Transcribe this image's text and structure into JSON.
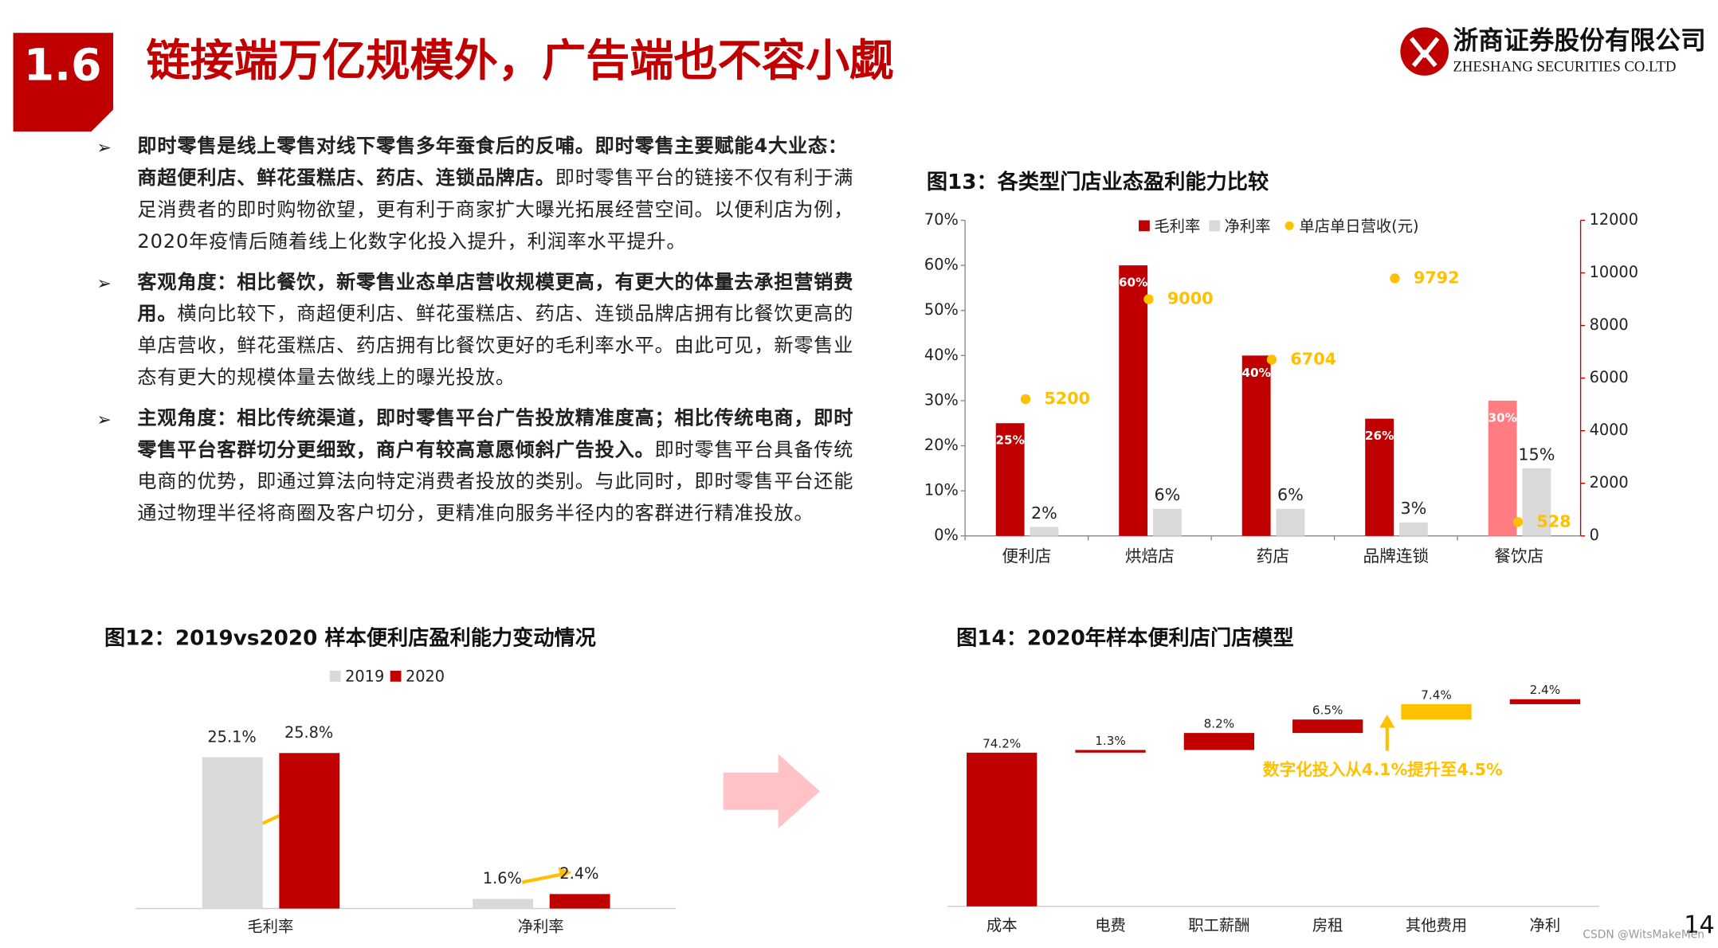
{
  "header": {
    "section": "1.6",
    "title": "链接端万亿规模外，广告端也不容小觑",
    "company": "浙商证券股份有限公司",
    "company_en": "ZHESHANG SECURITIES CO.LTD"
  },
  "bullets": [
    {
      "bold": "即时零售是线上零售对线下零售多年蚕食后的反哺。即时零售主要赋能4大业态：商超便利店、鲜花蛋糕店、药店、连锁品牌店。",
      "text": "即时零售平台的链接不仅有利于满足消费者的即时购物欲望，更有利于商家扩大曝光拓展经营空间。以便利店为例，2020年疫情后随着线上化数字化投入提升，利润率水平提升。"
    },
    {
      "bold": "客观角度：相比餐饮，新零售业态单店营收规模更高，有更大的体量去承担营销费用。",
      "text": "横向比较下，商超便利店、鲜花蛋糕店、药店、连锁品牌店拥有比餐饮更高的单店营收，鲜花蛋糕店、药店拥有比餐饮更好的毛利率水平。由此可见，新零售业态有更大的规模体量去做线上的曝光投放。"
    },
    {
      "bold": "主观角度：相比传统渠道，即时零售平台广告投放精准度高；相比传统电商，即时零售平台客群切分更细致，商户有较高意愿倾斜广告投入。",
      "text": "即时零售平台具备传统电商的优势，即通过算法向特定消费者投放的类别。与此同时，即时零售平台还能通过物理半径将商圈及客户切分，更精准向服务半径内的客群进行精准投放。"
    }
  ],
  "chart_data": [
    {
      "type": "bar",
      "title": "图13：各类型门店业态盈利能力比较",
      "categories": [
        "便利店",
        "烘焙店",
        "药店",
        "品牌连锁",
        "餐饮店"
      ],
      "series": [
        {
          "name": "毛利率",
          "color": "#c00000",
          "colors": [
            "#c00000",
            "#c00000",
            "#c00000",
            "#c00000",
            "#ff7c80"
          ],
          "values": [
            25,
            60,
            40,
            26,
            30
          ],
          "value_labels": [
            "25%",
            "60%",
            "40%",
            "26%",
            "30%"
          ]
        },
        {
          "name": "净利率",
          "color": "#d9d9d9",
          "values": [
            2,
            6,
            6,
            3,
            15
          ],
          "value_labels": [
            "2%",
            "6%",
            "6%",
            "3%",
            "15%"
          ]
        },
        {
          "name": "单店单日营收(元)",
          "type": "scatter",
          "axis": "y2",
          "color": "#ffc000",
          "values": [
            5200,
            9000,
            6704,
            9792,
            528
          ]
        }
      ],
      "ylim": [
        0,
        70
      ],
      "yticks": [
        {
          "value": 0,
          "label": "0%"
        },
        {
          "value": 10,
          "label": "10%"
        },
        {
          "value": 20,
          "label": "20%"
        },
        {
          "value": 30,
          "label": "30%"
        },
        {
          "value": 40,
          "label": "40%"
        },
        {
          "value": 50,
          "label": "50%"
        },
        {
          "value": 60,
          "label": "60%"
        },
        {
          "value": 70,
          "label": "70%"
        }
      ],
      "y2lim": [
        0,
        12000
      ],
      "y2ticks": [
        0,
        2000,
        4000,
        6000,
        8000,
        10000,
        12000
      ]
    },
    {
      "type": "bar",
      "title": "图12：2019vs2020 样本便利店盈利能力变动情况",
      "categories": [
        "毛利率",
        "净利率"
      ],
      "series": [
        {
          "name": "2019",
          "color": "#d9d9d9",
          "values": [
            25.1,
            1.6
          ],
          "value_labels": [
            "25.1%",
            "1.6%"
          ]
        },
        {
          "name": "2020",
          "color": "#c00000",
          "values": [
            25.8,
            2.4
          ],
          "value_labels": [
            "25.8%",
            "2.4%"
          ]
        }
      ]
    },
    {
      "type": "waterfall",
      "title": "图14：2020年样本便利店门店模型",
      "categories": [
        "成本",
        "电费",
        "职工薪酬",
        "房租",
        "其他费用",
        "净利"
      ],
      "values": [
        74.2,
        1.3,
        8.2,
        6.5,
        7.4,
        2.4
      ],
      "value_labels": [
        "74.2%",
        "1.3%",
        "8.2%",
        "6.5%",
        "7.4%",
        "2.4%"
      ],
      "colors": [
        "#c00000",
        "#c00000",
        "#c00000",
        "#c00000",
        "#ffc000",
        "#c00000"
      ],
      "annotation": "数字化投入从4.1%提升至4.5%"
    }
  ],
  "page_number": "14",
  "watermark": "CSDN @WitsMakeMen"
}
